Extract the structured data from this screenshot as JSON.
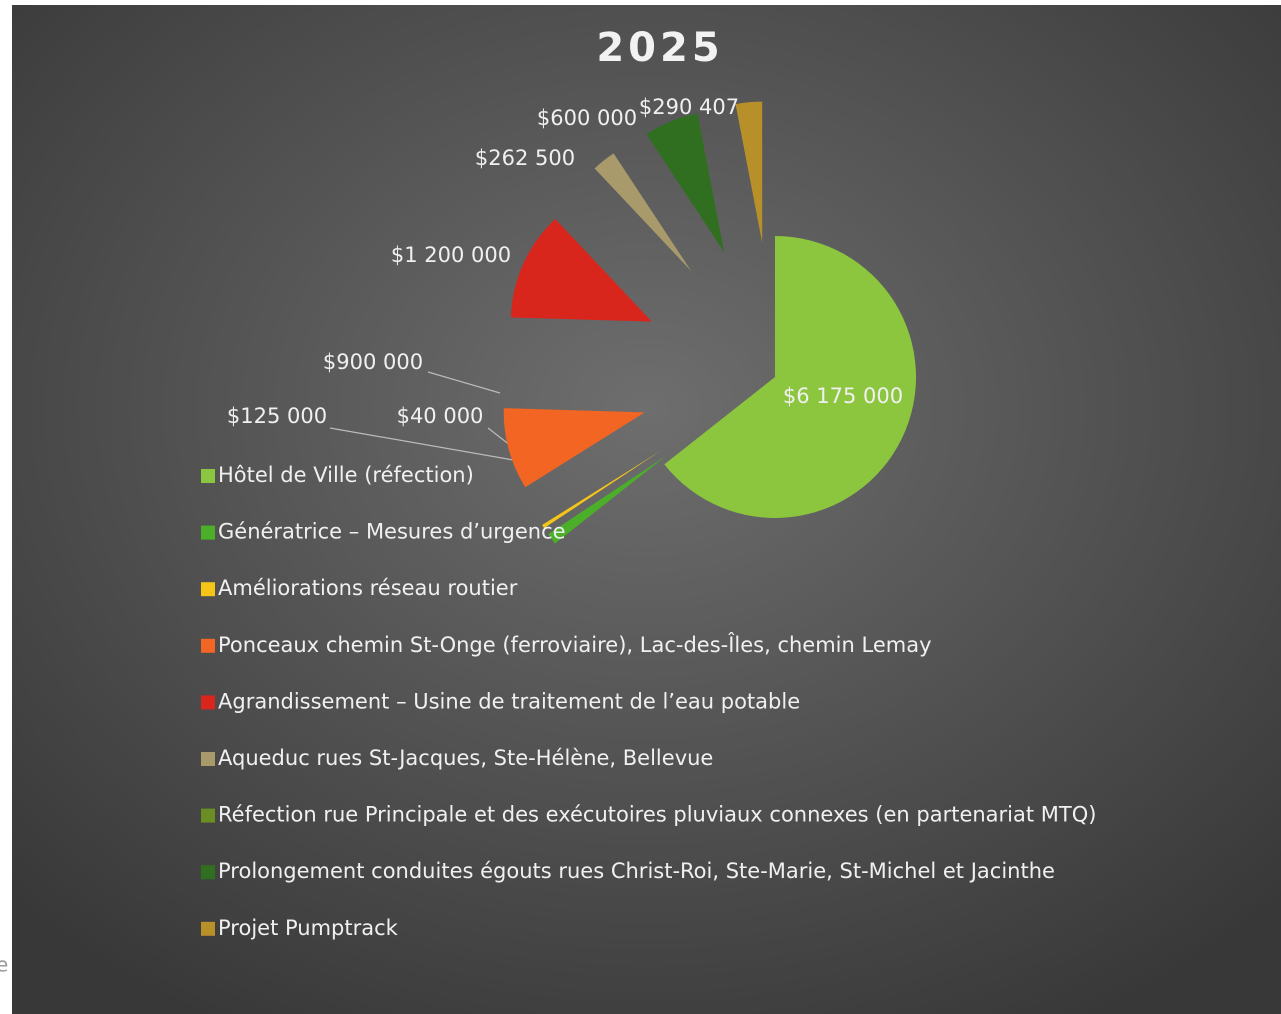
{
  "chart_data": {
    "type": "pie",
    "title": "2025",
    "categories": [
      "Hôtel de Ville (réfection)",
      "Génératrice – Mesures d’urgence",
      "Améliorations réseau routier",
      "Ponceaux chemin St-Onge (ferroviaire), Lac-des-Îles, chemin Lemay",
      "Agrandissement – Usine de traitement de l’eau potable",
      "Aqueduc rues St-Jacques, Ste-Hélène, Bellevue",
      "Réfection rue Principale et des exécutoires pluviaux connexes (en partenariat MTQ)",
      "Prolongement conduites égouts rues Christ-Roi, Ste-Marie, St-Michel et Jacinthe",
      "Projet Pumptrack"
    ],
    "values": [
      6175000,
      125000,
      40000,
      900000,
      1200000,
      262500,
      null,
      600000,
      290407
    ],
    "value_labels": [
      "$6 175 000",
      "$125 000",
      "$40 000",
      "$900 000",
      "$1 200 000",
      "$262 500",
      null,
      "$600 000",
      "$290 407"
    ],
    "colors": [
      "#8cc63f",
      "#4caf2a",
      "#f5c518",
      "#f26522",
      "#d9261c",
      "#a89a6a",
      "#6b8e23",
      "#2f6f1f",
      "#b8902a"
    ],
    "legend": "left"
  },
  "side_fragment": "e"
}
